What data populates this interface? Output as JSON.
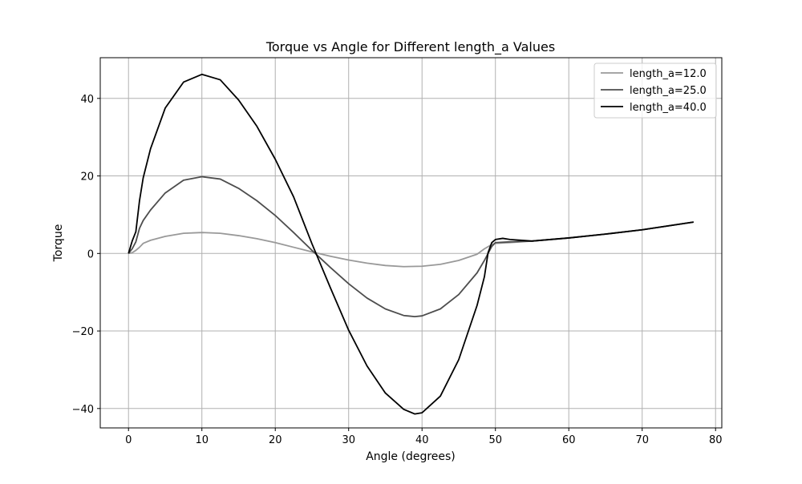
{
  "chart_data": {
    "type": "line",
    "title": "Torque vs Angle for Different length_a Values",
    "xlabel": "Angle (degrees)",
    "ylabel": "Torque",
    "xlim": [
      -3.85,
      80.85
    ],
    "ylim": [
      -45.0,
      50.5
    ],
    "xticks": [
      0,
      10,
      20,
      30,
      40,
      50,
      60,
      70,
      80
    ],
    "yticks": [
      -40,
      -20,
      0,
      20,
      40
    ],
    "xtick_labels": [
      "0",
      "10",
      "20",
      "30",
      "40",
      "50",
      "60",
      "70",
      "80"
    ],
    "ytick_labels": [
      "−40",
      "−20",
      "0",
      "20",
      "40"
    ],
    "grid": true,
    "legend_position": "top-right",
    "series": [
      {
        "name": "length_a=12.0",
        "color": "#999999",
        "x": [
          0,
          0.5,
          1,
          1.5,
          2,
          3,
          5,
          7.5,
          10,
          12.5,
          15,
          17.5,
          20,
          22.5,
          25,
          27.5,
          30,
          32.5,
          35,
          37.5,
          40,
          42.5,
          45,
          47.5,
          48.5,
          49.5,
          50,
          52,
          55,
          60,
          65,
          70,
          77
        ],
        "y": [
          0,
          0.2,
          0.8,
          1.6,
          2.6,
          3.4,
          4.4,
          5.2,
          5.4,
          5.2,
          4.6,
          3.8,
          2.8,
          1.6,
          0.4,
          -0.7,
          -1.7,
          -2.5,
          -3.1,
          -3.4,
          -3.3,
          -2.8,
          -1.8,
          -0.2,
          1.2,
          2.3,
          2.6,
          2.8,
          3.2,
          4.0,
          5.0,
          6.1,
          8.1
        ]
      },
      {
        "name": "length_a=25.0",
        "color": "#4d4d4d",
        "x": [
          0,
          0.5,
          1,
          1.5,
          2,
          3,
          5,
          7.5,
          10,
          12.5,
          15,
          17.5,
          20,
          22.5,
          25,
          27.5,
          30,
          32.5,
          35,
          37.5,
          39,
          40,
          42.5,
          45,
          47.5,
          48.5,
          49.5,
          50,
          52,
          55,
          60,
          65,
          70,
          77
        ],
        "y": [
          0,
          1.2,
          3.0,
          6.5,
          8.5,
          11.2,
          15.6,
          18.9,
          19.8,
          19.2,
          16.8,
          13.6,
          9.8,
          5.4,
          0.8,
          -3.6,
          -7.8,
          -11.5,
          -14.3,
          -16.0,
          -16.3,
          -16.1,
          -14.3,
          -10.6,
          -5.0,
          -1.8,
          1.8,
          2.8,
          3.0,
          3.2,
          4.0,
          5.0,
          6.1,
          8.1
        ]
      },
      {
        "name": "length_a=40.0",
        "color": "#000000",
        "x": [
          0,
          0.5,
          1,
          1.5,
          2,
          3,
          5,
          7.5,
          10,
          12.5,
          15,
          17.5,
          20,
          22.5,
          25,
          27.5,
          30,
          32.5,
          35,
          37.5,
          39,
          40,
          42.5,
          45,
          47.5,
          48.5,
          49.0,
          49.5,
          50,
          51,
          52,
          55,
          60,
          65,
          70,
          77
        ],
        "y": [
          0,
          3.2,
          5.6,
          13.6,
          19.5,
          27.0,
          37.5,
          44.2,
          46.2,
          44.8,
          39.6,
          32.8,
          24.3,
          14.6,
          2.5,
          -8.8,
          -19.8,
          -29.0,
          -36.0,
          -40.2,
          -41.4,
          -41.1,
          -36.8,
          -27.4,
          -13.4,
          -6.0,
          0.2,
          2.8,
          3.6,
          3.9,
          3.6,
          3.2,
          4.0,
          5.0,
          6.1,
          8.1
        ]
      }
    ]
  }
}
